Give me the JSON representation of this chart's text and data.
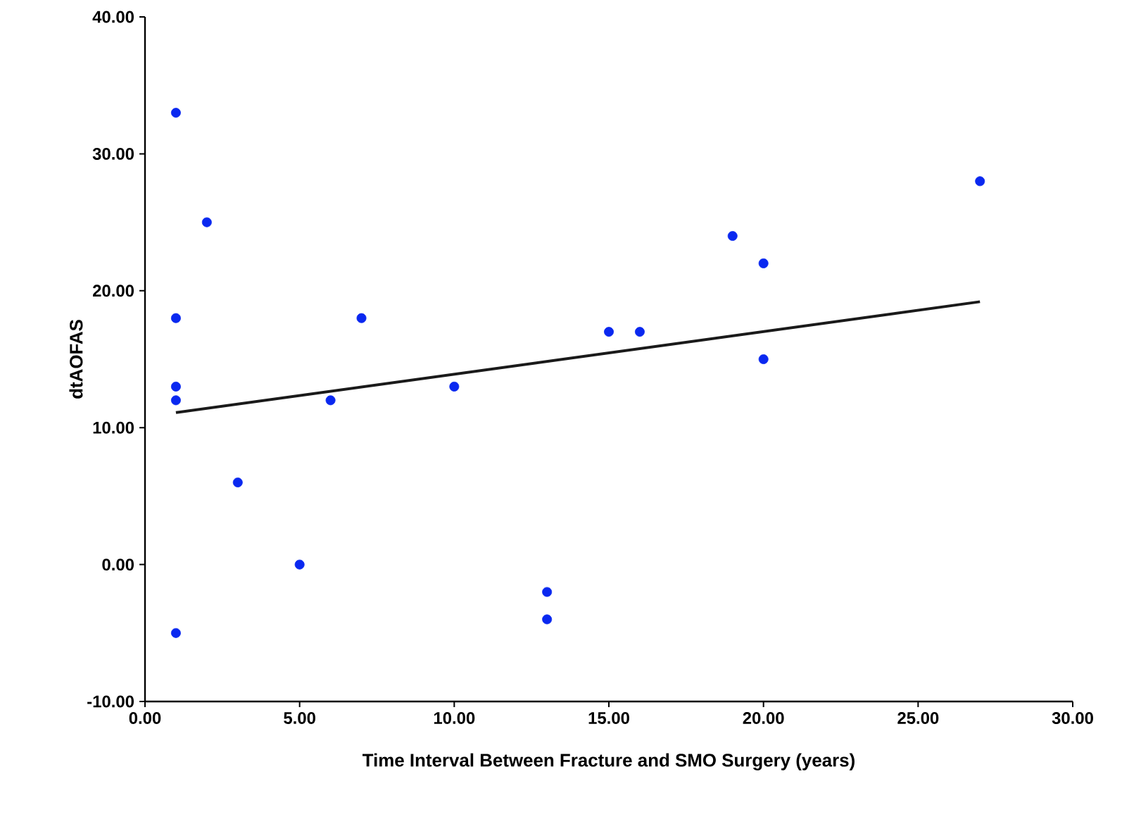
{
  "chart_data": {
    "type": "scatter",
    "xlabel": "Time Interval Between Fracture and SMO Surgery (years)",
    "ylabel": "dtAOFAS",
    "xlim": [
      0,
      30
    ],
    "ylim": [
      -10,
      40
    ],
    "xticks": [
      {
        "value": 0,
        "label": "0.00"
      },
      {
        "value": 5,
        "label": "5.00"
      },
      {
        "value": 10,
        "label": "10.00"
      },
      {
        "value": 15,
        "label": "15.00"
      },
      {
        "value": 20,
        "label": "20.00"
      },
      {
        "value": 25,
        "label": "25.00"
      },
      {
        "value": 30,
        "label": "30.00"
      }
    ],
    "yticks": [
      {
        "value": -10,
        "label": "-10.00"
      },
      {
        "value": 0,
        "label": "0.00"
      },
      {
        "value": 10,
        "label": "10.00"
      },
      {
        "value": 20,
        "label": "20.00"
      },
      {
        "value": 30,
        "label": "30.00"
      },
      {
        "value": 40,
        "label": "40.00"
      }
    ],
    "series": [
      {
        "marker": "circle",
        "color": "#0a28f0",
        "x": [
          1,
          2,
          1,
          1,
          1,
          1,
          3,
          5,
          6,
          7,
          10,
          13,
          13,
          15,
          16,
          19,
          20,
          20,
          27
        ],
        "values": [
          33,
          25,
          18,
          13,
          12,
          -5,
          6,
          0,
          12,
          18,
          13,
          -2,
          -4,
          17,
          17,
          24,
          22,
          15,
          28
        ]
      },
      {
        "type": "line",
        "marker": "none",
        "color": "#1a1a1a",
        "x": [
          1,
          27
        ],
        "values": [
          11.1,
          19.2
        ]
      }
    ]
  }
}
